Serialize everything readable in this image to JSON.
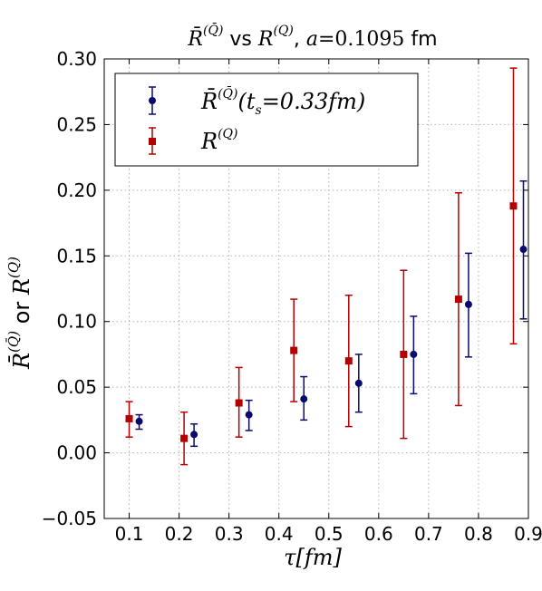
{
  "chart_data": {
    "type": "scatter",
    "title": "R̄^(Q̄) vs R^(Q), a = 0.1095 fm",
    "xlabel": "τ[fm]",
    "ylabel": "R̄^(Q̄) or R^(Q)",
    "xlim": [
      0.05,
      0.9
    ],
    "ylim": [
      -0.05,
      0.3
    ],
    "xticks": [
      0.1,
      0.2,
      0.3,
      0.4,
      0.5,
      0.6,
      0.7,
      0.8,
      0.9
    ],
    "yticks": [
      -0.05,
      0.0,
      0.05,
      0.1,
      0.15,
      0.2,
      0.25,
      0.3
    ],
    "xtick_labels": [
      "0.1",
      "0.2",
      "0.3",
      "0.4",
      "0.5",
      "0.6",
      "0.7",
      "0.8",
      "0.9"
    ],
    "ytick_labels": [
      "−0.05",
      "0.00",
      "0.05",
      "0.10",
      "0.15",
      "0.20",
      "0.25",
      "0.30"
    ],
    "grid": true,
    "legend_position": "top-left",
    "series": [
      {
        "name": "R̄^(Q̄)(t_s = 0.33fm)",
        "color": "#0a0a6e",
        "marker": "circle",
        "x": [
          0.12,
          0.23,
          0.34,
          0.45,
          0.56,
          0.67,
          0.78,
          0.89
        ],
        "y": [
          0.024,
          0.014,
          0.029,
          0.041,
          0.053,
          0.075,
          0.113,
          0.155
        ],
        "yerr_low": [
          0.018,
          0.005,
          0.017,
          0.025,
          0.031,
          0.045,
          0.073,
          0.102
        ],
        "yerr_high": [
          0.029,
          0.022,
          0.04,
          0.058,
          0.075,
          0.104,
          0.152,
          0.207
        ]
      },
      {
        "name": "R^(Q)",
        "color": "#b30000",
        "marker": "square",
        "x": [
          0.1,
          0.21,
          0.32,
          0.43,
          0.54,
          0.65,
          0.76,
          0.87
        ],
        "y": [
          0.026,
          0.011,
          0.038,
          0.078,
          0.07,
          0.075,
          0.117,
          0.188
        ],
        "yerr_low": [
          0.012,
          -0.009,
          0.012,
          0.039,
          0.02,
          0.011,
          0.036,
          0.083
        ],
        "yerr_high": [
          0.039,
          0.031,
          0.065,
          0.117,
          0.12,
          0.139,
          0.198,
          0.293
        ]
      }
    ]
  }
}
